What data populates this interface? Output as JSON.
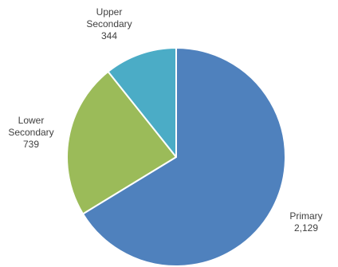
{
  "chart_data": {
    "type": "pie",
    "slices": [
      {
        "label_lines": [
          "Primary"
        ],
        "value": 2129,
        "value_text": "2,129",
        "color": "#4f81bd"
      },
      {
        "label_lines": [
          "Lower",
          "Secondary"
        ],
        "value": 739,
        "value_text": "739",
        "color": "#9bbb59"
      },
      {
        "label_lines": [
          "Upper",
          "Secondary"
        ],
        "value": 344,
        "value_text": "344",
        "color": "#4bacc6"
      }
    ],
    "start_angle_deg": 0,
    "direction": "clockwise",
    "legend": "none"
  }
}
